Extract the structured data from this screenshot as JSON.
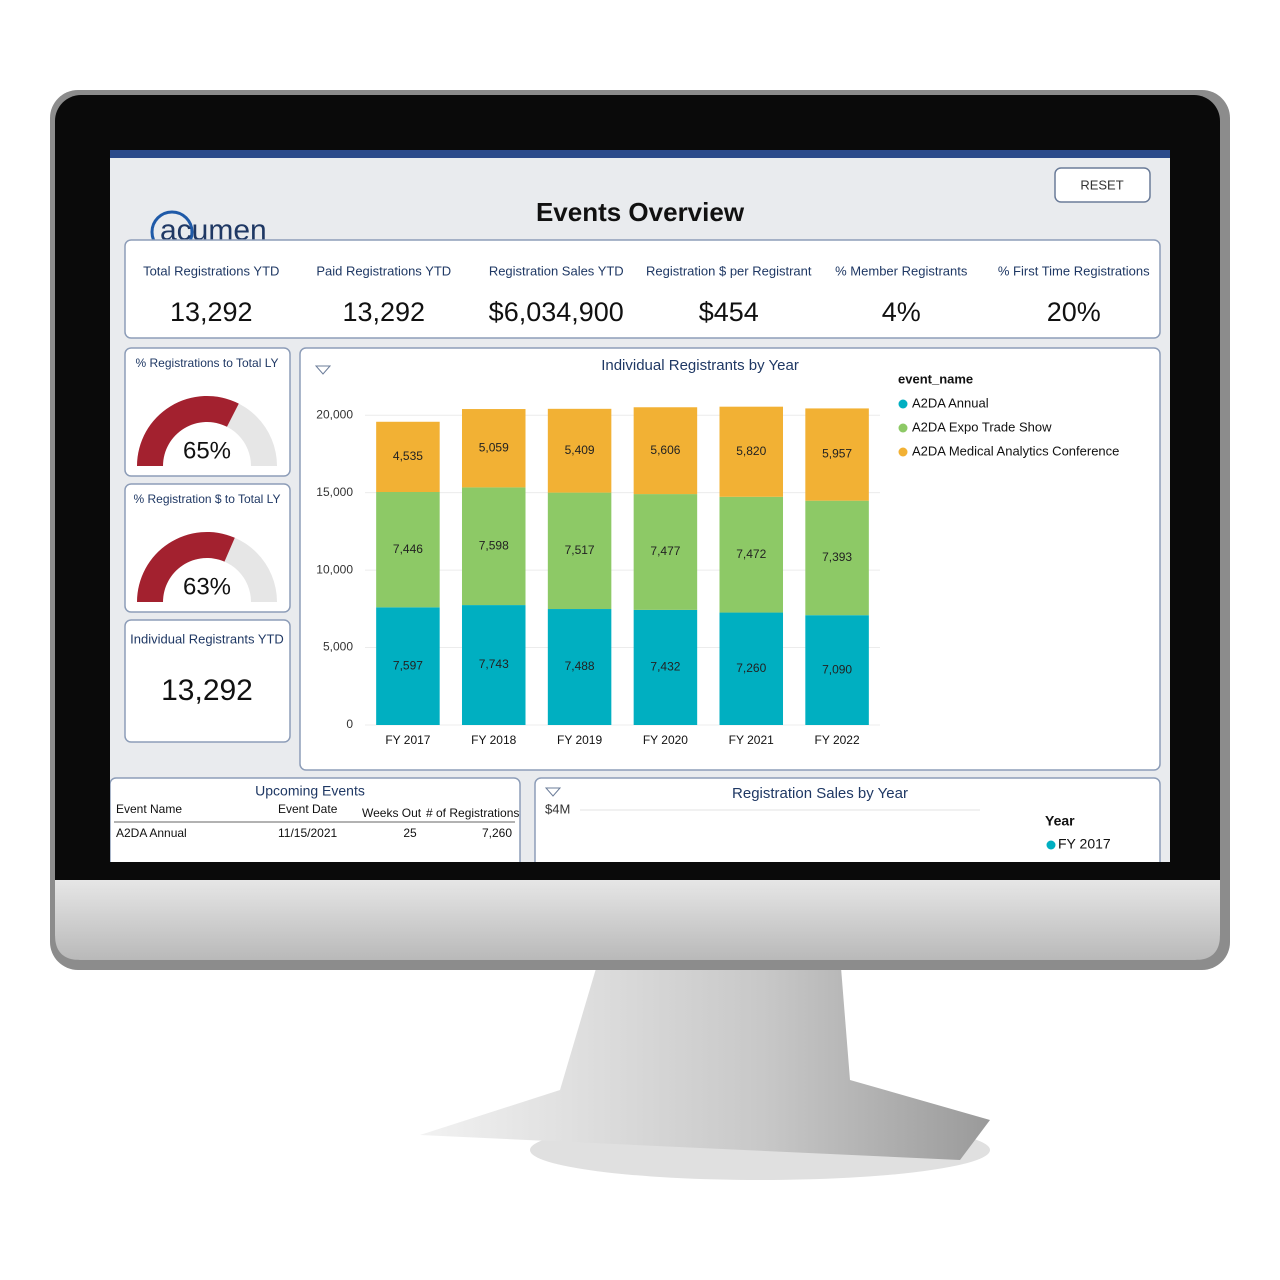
{
  "header": {
    "logo": "acumen",
    "title": "Events Overview",
    "reset": "RESET"
  },
  "kpis": [
    {
      "label": "Total Registrations YTD",
      "value": "13,292"
    },
    {
      "label": "Paid Registrations YTD",
      "value": "13,292"
    },
    {
      "label": "Registration Sales YTD",
      "value": "$6,034,900"
    },
    {
      "label": "Registration $ per Registrant",
      "value": "$454"
    },
    {
      "label": "% Member Registrants",
      "value": "4%"
    },
    {
      "label": "% First Time Registrations",
      "value": "20%"
    }
  ],
  "gauges": [
    {
      "label": "% Registrations to Total LY",
      "value": 65,
      "value_label": "65%"
    },
    {
      "label": "% Registration $ to Total LY",
      "value": 63,
      "value_label": "63%"
    }
  ],
  "individual_ytd": {
    "label": "Individual Registrants YTD",
    "value": "13,292"
  },
  "chart_data": {
    "type": "stacked_bar",
    "title": "Individual Registrants by Year",
    "legend_title": "event_name",
    "categories": [
      "FY 2017",
      "FY 2018",
      "FY 2019",
      "FY 2020",
      "FY 2021",
      "FY 2022"
    ],
    "series": [
      {
        "name": "A2DA Annual",
        "color": "#00afc1",
        "values": [
          7597,
          7743,
          7488,
          7432,
          7260,
          7090
        ],
        "value_labels": [
          "7,597",
          "7,743",
          "7,488",
          "7,432",
          "7,260",
          "7,090"
        ]
      },
      {
        "name": "A2DA Expo Trade Show",
        "color": "#8dc966",
        "values": [
          7446,
          7598,
          7517,
          7477,
          7472,
          7393
        ],
        "value_labels": [
          "7,446",
          "7,598",
          "7,517",
          "7,477",
          "7,472",
          "7,393"
        ]
      },
      {
        "name": "A2DA Medical Analytics Conference",
        "color": "#f2b134",
        "values": [
          4535,
          5059,
          5409,
          5606,
          5820,
          5957
        ],
        "value_labels": [
          "4,535",
          "5,059",
          "5,409",
          "5,606",
          "5,820",
          "5,957"
        ]
      }
    ],
    "ylim": [
      0,
      21500
    ],
    "yticks": [
      0,
      {
        "value": 5000,
        "label": "5,000"
      },
      {
        "value": 10000,
        "label": "10,000"
      },
      {
        "value": 15000,
        "label": "15,000"
      },
      {
        "value": 20000,
        "label": "20,000"
      }
    ],
    "grid": true
  },
  "upcoming_events": {
    "title": "Upcoming Events",
    "columns": [
      "Event Name",
      "Event Date",
      "Weeks Out",
      "# of Registrations"
    ],
    "rows": [
      [
        "A2DA Annual",
        "11/15/2021",
        "25",
        "7,260"
      ]
    ]
  },
  "sales_chart": {
    "title": "Registration Sales by Year",
    "y_tick_label": "$4M",
    "legend_title": "Year",
    "legend": [
      {
        "name": "FY 2017",
        "color": "#00afc1"
      }
    ]
  }
}
